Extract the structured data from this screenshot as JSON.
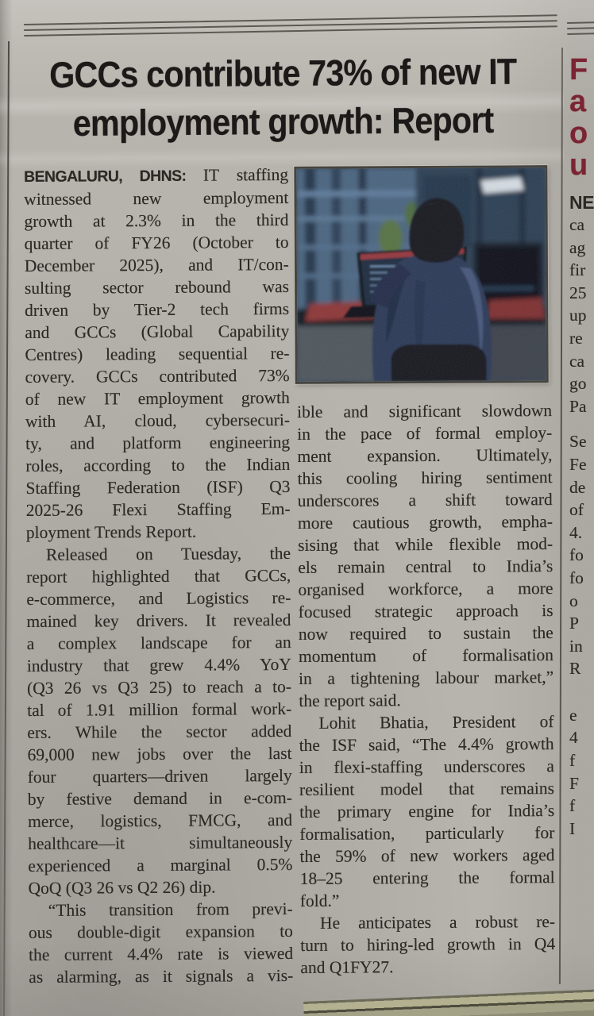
{
  "article": {
    "headline_line1": "GCCs contribute 73% of new IT",
    "headline_line2": "employment growth: Report",
    "dateline_prefix": "BENGALURU, DHNS:",
    "column1_lines": [
      {
        "text": "IT staffing",
        "lead": true
      },
      {
        "text": "witnessed new employment"
      },
      {
        "text": "growth at 2.3% in the third"
      },
      {
        "text": "quarter of FY26 (October to"
      },
      {
        "text": "December 2025), and IT/con-"
      },
      {
        "text": "sulting sector rebound was"
      },
      {
        "text": "driven by Tier-2 tech firms"
      },
      {
        "text": "and GCCs (Global Capability"
      },
      {
        "text": "Centres) leading sequential re-"
      },
      {
        "text": "covery. GCCs contributed 73%"
      },
      {
        "text": "of new IT employment growth"
      },
      {
        "text": "with AI, cloud, cybersecuri-"
      },
      {
        "text": "ty, and platform engineering"
      },
      {
        "text": "roles, according to the Indian"
      },
      {
        "text": "Staffing Federation (ISF) Q3"
      },
      {
        "text": "2025-26 Flexi Staffing Em-"
      },
      {
        "text": "ployment Trends Report.",
        "end": true
      },
      {
        "text": "Released on Tuesday, the",
        "indent": true
      },
      {
        "text": "report highlighted that GCCs,"
      },
      {
        "text": "e-commerce, and Logistics re-"
      },
      {
        "text": "mained key drivers. It revealed"
      },
      {
        "text": "a complex landscape for an"
      },
      {
        "text": "industry that grew 4.4% YoY"
      },
      {
        "text": "(Q3 26 vs Q3 25) to reach a to-"
      },
      {
        "text": "tal of 1.91 million formal work-"
      },
      {
        "text": "ers. While the sector added"
      },
      {
        "text": "69,000 new jobs over the last"
      },
      {
        "text": "four quarters—driven largely"
      },
      {
        "text": "by festive demand in e-com-"
      },
      {
        "text": "merce, logistics, FMCG, and"
      },
      {
        "text": "healthcare—it simultaneously"
      },
      {
        "text": "experienced a marginal 0.5%"
      },
      {
        "text": "QoQ (Q3 26 vs Q2 26) dip.",
        "end": true
      },
      {
        "text": "“This transition from previ-",
        "indent": true
      },
      {
        "text": "ous double-digit expansion to"
      },
      {
        "text": "the current 4.4% rate is viewed"
      },
      {
        "text": "as alarming, as it signals a vis-"
      }
    ],
    "column2_lines": [
      {
        "text": "ible and significant slowdown"
      },
      {
        "text": "in the pace of formal employ-"
      },
      {
        "text": "ment expansion. Ultimately,"
      },
      {
        "text": "this cooling hiring sentiment"
      },
      {
        "text": "underscores a shift toward"
      },
      {
        "text": "more cautious growth, empha-"
      },
      {
        "text": "sising that while flexible mod-"
      },
      {
        "text": "els remain central to India’s"
      },
      {
        "text": "organised workforce, a more"
      },
      {
        "text": "focused strategic approach is"
      },
      {
        "text": "now required to sustain the"
      },
      {
        "text": "momentum of formalisation"
      },
      {
        "text": "in a tightening labour market,”"
      },
      {
        "text": "the report said.",
        "end": true
      },
      {
        "text": "Lohit Bhatia, President of",
        "indent": true
      },
      {
        "text": "the ISF said, “The 4.4% growth"
      },
      {
        "text": "in flexi-staffing underscores a"
      },
      {
        "text": "resilient model that remains"
      },
      {
        "text": "the primary engine for India’s"
      },
      {
        "text": "formalisation, particularly for"
      },
      {
        "text": "the 59% of new workers aged"
      },
      {
        "text": "18–25 entering the formal"
      },
      {
        "text": "fold.”",
        "end": true
      },
      {
        "text": "He anticipates a robust re-",
        "indent": true
      },
      {
        "text": "turn to hiring-led growth in Q4"
      },
      {
        "text": "and Q1FY27.",
        "end": true
      }
    ],
    "photo_alt": "Back view of an IT worker in a dark jacket coding on a laptop in a blue-lit office"
  },
  "side_column": {
    "headline_letters": [
      "F",
      "a",
      "o",
      "u"
    ],
    "dateline_fragment": "NE",
    "fragments_group1": [
      "ca",
      "ag",
      "fir",
      "25",
      "up",
      "re",
      "ca",
      "go",
      "Pa"
    ],
    "fragments_group2": [
      "Se",
      "Fe",
      "de",
      "of",
      "4.",
      "fo",
      "fo",
      "o",
      "P",
      "in",
      "R"
    ],
    "fragments_group3": [
      "e",
      "4",
      "f",
      "F",
      "f",
      "I"
    ]
  },
  "colors": {
    "paper": "#b7b4ad",
    "ink": "#2b2925",
    "headline_ink": "#1b1a18",
    "side_headline": "#7b2433"
  }
}
